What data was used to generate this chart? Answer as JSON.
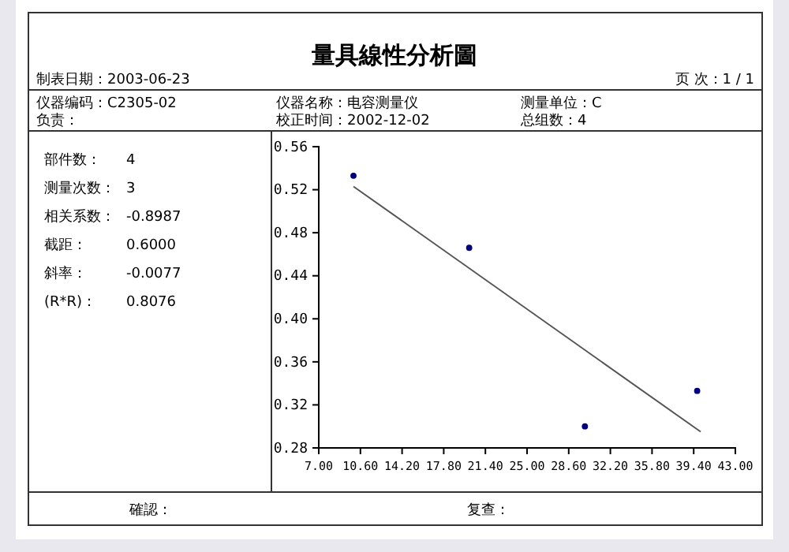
{
  "chart_data": {
    "type": "scatter",
    "title": "量具線性分析圖",
    "annotations": [
      "制表日期：2003-06-23",
      "页 次：1 / 1",
      "仪器编码：C2305-02",
      "仪器名称：电容测量仪",
      "测量单位：C",
      "负责：",
      "校正时间：2002-12-02",
      "总组数：4",
      "部件数：",
      "4",
      "测量次数：",
      "3",
      "相关系数：",
      "-0.8987",
      "截距：",
      "0.6000",
      "斜率：",
      "-0.0077",
      "(R*R)：",
      "0.8076",
      "確認：",
      "复查："
    ],
    "series": [
      {
        "color": "#000080",
        "marker": "circle",
        "x": [
          10,
          20,
          30,
          39.7
        ],
        "values": [
          0.533,
          0.466,
          0.3,
          0.333
        ]
      },
      {
        "type": "line",
        "color": "#555555",
        "marker": "none",
        "x": [
          10,
          40
        ],
        "values": [
          0.523,
          0.295
        ]
      }
    ],
    "xlim": [
      7,
      43
    ],
    "ylim": [
      0.28,
      0.56
    ],
    "xticks": [
      {
        "value": 7,
        "label": "7.00"
      },
      {
        "value": 10.6,
        "label": "10.60"
      },
      {
        "value": 14.2,
        "label": "14.20"
      },
      {
        "value": 17.8,
        "label": "17.80"
      },
      {
        "value": 21.4,
        "label": "21.40"
      },
      {
        "value": 25,
        "label": "25.00"
      },
      {
        "value": 28.6,
        "label": "28.60"
      },
      {
        "value": 32.2,
        "label": "32.20"
      },
      {
        "value": 35.8,
        "label": "35.80"
      },
      {
        "value": 39.4,
        "label": "39.40"
      },
      {
        "value": 43,
        "label": "43.00"
      }
    ],
    "yticks": [
      {
        "value": 0.28,
        "label": "0.28"
      },
      {
        "value": 0.32,
        "label": "0.32"
      },
      {
        "value": 0.36,
        "label": "0.36"
      },
      {
        "value": 0.4,
        "label": "0.40"
      },
      {
        "value": 0.44,
        "label": "0.44"
      },
      {
        "value": 0.48,
        "label": "0.48"
      },
      {
        "value": 0.52,
        "label": "0.52"
      },
      {
        "value": 0.56,
        "label": "0.56"
      }
    ]
  }
}
